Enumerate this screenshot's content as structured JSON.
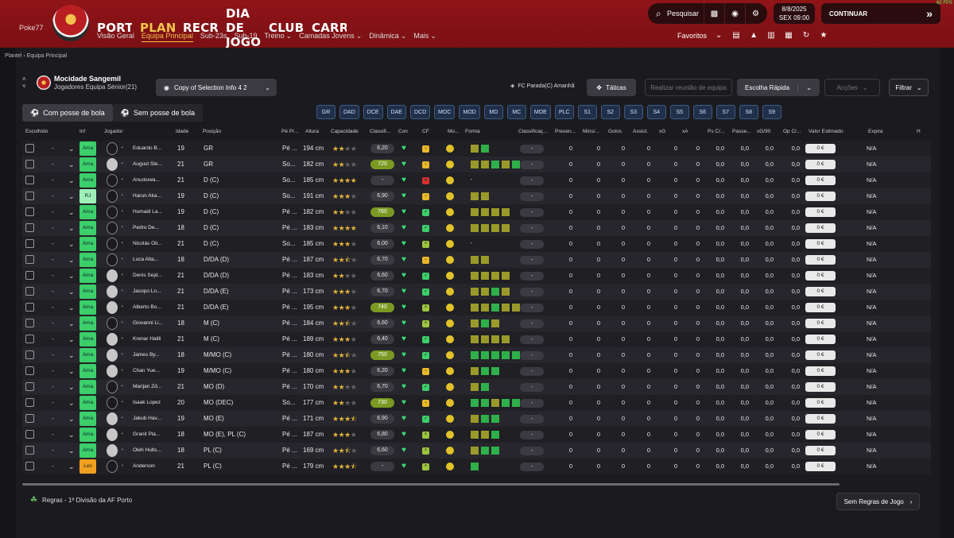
{
  "watermark": {
    "top": "",
    "user": "Poke77"
  },
  "fps": "60 FPS",
  "nav": {
    "main": [
      {
        "label": "PORTAL",
        "active": false
      },
      {
        "label": "PLANTEL",
        "active": true
      },
      {
        "label": "RECRUTAMENTO",
        "active": false
      },
      {
        "label": "DIA DE JOGO",
        "active": false
      },
      {
        "label": "CLUBE",
        "active": false
      },
      {
        "label": "CARREIRA",
        "active": false
      }
    ],
    "sub": [
      "Visão Geral",
      "Equipa Principal",
      "Sub-23s",
      "Sub-19",
      "Treino",
      "Camadas Jovens",
      "Dinâmica",
      "Mais"
    ],
    "sub_active": 1,
    "search_label": "Pesquisar",
    "date": "8/8/2025",
    "time": "SEX   09:00",
    "continue": "CONTINUAR",
    "favorites": "Favoritos"
  },
  "breadcrumb": "Plantel  ›  Equipa Principal",
  "header": {
    "club": "Mocidade Sangemil",
    "squad": "Jogadores Equipa Sénior(21)",
    "selection": "Copy of Selection Info 4 2",
    "next_match": "FC Parada(C) Amanhã",
    "tactics": "Táticas",
    "meeting": "Realizar reunião de equipa",
    "quick_pick": "Escolha Rápida",
    "actions": "Acções",
    "filter": "Filtrar"
  },
  "possession": {
    "with": "Com posse de bola",
    "without": "Sem posse de bola"
  },
  "position_filters": [
    "GR",
    "DAD",
    "DCE",
    "DAE",
    "DCD",
    "MOC",
    "MOD",
    "MD",
    "MC",
    "MOE",
    "PLC",
    "S1",
    "S2",
    "S3",
    "S4",
    "S5",
    "S6",
    "S7",
    "S8",
    "S9"
  ],
  "columns": [
    "Escolhido",
    "Inf",
    "Jogador",
    "Idade",
    "Posição",
    "Pé Pr...",
    "Altura",
    "Capacidade",
    "Classifi...",
    "Con",
    "CF",
    "Mo...",
    "Forma",
    "Classificaç...",
    "Presen...",
    "Mins/...",
    "Golos",
    "Assist.",
    "xG",
    "xA",
    "Ps C/...",
    "Passe...",
    "xG/90",
    "Op C/...",
    "Valor Estimado",
    "Expira",
    "H"
  ],
  "players": [
    {
      "name": "Eduardo B...",
      "inf": "Ama",
      "age": "19",
      "pos": "GR",
      "foot": "Pé ...",
      "height": "194 cm",
      "stars": 2,
      "half": false,
      "rating": "6,20",
      "hot": false,
      "cf": "y",
      "photo": false,
      "form": [
        "#9a9a2a",
        "#2fb04a"
      ]
    },
    {
      "name": "August Sle...",
      "inf": "Ama",
      "age": "21",
      "pos": "GR",
      "foot": "So...",
      "height": "182 cm",
      "stars": 2,
      "half": false,
      "rating": "720",
      "hot": true,
      "cf": "y",
      "photo": true,
      "form": [
        "#9a9a2a",
        "#9a9a2a",
        "#2fb04a",
        "#9a9a2a",
        "#2fb04a"
      ]
    },
    {
      "name": "Anuoluwa...",
      "inf": "Ama",
      "age": "21",
      "pos": "D (C)",
      "foot": "So...",
      "height": "185 cm",
      "stars": 4,
      "half": false,
      "rating": "-",
      "hot": false,
      "cf": "r",
      "photo": false,
      "form": []
    },
    {
      "name": "Harun Aka...",
      "inf": "RJ",
      "age": "19",
      "pos": "D (C)",
      "foot": "So...",
      "height": "191 cm",
      "stars": 3,
      "half": false,
      "rating": "6,90",
      "hot": false,
      "cf": "y",
      "photo": false,
      "form": [
        "#9a9a2a",
        "#9a9a2a"
      ]
    },
    {
      "name": "Humaid La...",
      "inf": "Ama",
      "age": "19",
      "pos": "D (C)",
      "foot": "Pé ...",
      "height": "182 cm",
      "stars": 2,
      "half": false,
      "rating": "760",
      "hot": true,
      "cf": "gr",
      "photo": false,
      "form": [
        "#9a9a2a",
        "#9a9a2a",
        "#9a9a2a",
        "#9a9a2a"
      ]
    },
    {
      "name": "Pedro De...",
      "inf": "Ama",
      "age": "18",
      "pos": "D (C)",
      "foot": "Pé ...",
      "height": "183 cm",
      "stars": 4,
      "half": false,
      "rating": "6,10",
      "hot": false,
      "cf": "gr",
      "photo": false,
      "form": [
        "#9a9a2a",
        "#9a9a2a",
        "#9a9a2a",
        "#9a9a2a"
      ]
    },
    {
      "name": "Nicolás Oli...",
      "inf": "Ama",
      "age": "21",
      "pos": "D (C)",
      "foot": "So...",
      "height": "185 cm",
      "stars": 3,
      "half": false,
      "rating": "6,00",
      "hot": false,
      "cf": "gy",
      "photo": false,
      "form": []
    },
    {
      "name": "Luca Alta...",
      "inf": "Ama",
      "age": "18",
      "pos": "D/DA (D)",
      "foot": "Pé ...",
      "height": "187 cm",
      "stars": 2,
      "half": true,
      "rating": "6,70",
      "hot": false,
      "cf": "y",
      "photo": false,
      "form": [
        "#9a9a2a",
        "#9a9a2a"
      ]
    },
    {
      "name": "Denis Sejd...",
      "inf": "Ama",
      "age": "21",
      "pos": "D/DA (D)",
      "foot": "Pé ...",
      "height": "183 cm",
      "stars": 2,
      "half": false,
      "rating": "6,60",
      "hot": false,
      "cf": "gr",
      "photo": true,
      "form": [
        "#9a9a2a",
        "#9a9a2a",
        "#9a9a2a",
        "#9a9a2a"
      ]
    },
    {
      "name": "Jacopo Lo...",
      "inf": "Ama",
      "age": "21",
      "pos": "D/DA (E)",
      "foot": "Pé ...",
      "height": "173 cm",
      "stars": 3,
      "half": false,
      "rating": "6,70",
      "hot": false,
      "cf": "gr",
      "photo": true,
      "form": [
        "#9a9a2a",
        "#9a9a2a",
        "#2fb04a",
        "#9a9a2a"
      ]
    },
    {
      "name": "Alberto Bo...",
      "inf": "Ama",
      "age": "21",
      "pos": "D/DA (E)",
      "foot": "Pé ...",
      "height": "195 cm",
      "stars": 3,
      "half": false,
      "rating": "740",
      "hot": true,
      "cf": "gy",
      "photo": true,
      "form": [
        "#9a9a2a",
        "#9a9a2a",
        "#2fb04a",
        "#9a9a2a",
        "#9a9a2a"
      ]
    },
    {
      "name": "Giovanni Li...",
      "inf": "Ama",
      "age": "18",
      "pos": "M (C)",
      "foot": "Pé ...",
      "height": "184 cm",
      "stars": 2,
      "half": true,
      "rating": "6,60",
      "hot": false,
      "cf": "gy",
      "photo": false,
      "form": [
        "#9a9a2a",
        "#2fb04a",
        "#9a9a2a"
      ]
    },
    {
      "name": "Krenar Halili",
      "inf": "Ama",
      "age": "21",
      "pos": "M (C)",
      "foot": "Pé ...",
      "height": "189 cm",
      "stars": 3,
      "half": false,
      "rating": "6,40",
      "hot": false,
      "cf": "gr",
      "photo": true,
      "form": [
        "#9a9a2a",
        "#9a9a2a",
        "#9a9a2a",
        "#9a9a2a"
      ]
    },
    {
      "name": "James By...",
      "inf": "Ama",
      "age": "18",
      "pos": "M/MO (C)",
      "foot": "Pé ...",
      "height": "180 cm",
      "stars": 2,
      "half": true,
      "rating": "750",
      "hot": true,
      "cf": "gr",
      "photo": true,
      "form": [
        "#2fb04a",
        "#2fb04a",
        "#2fb04a",
        "#2fb04a",
        "#2fb04a"
      ]
    },
    {
      "name": "Chan Yue...",
      "inf": "Ama",
      "age": "19",
      "pos": "M/MO (C)",
      "foot": "Pé ...",
      "height": "180 cm",
      "stars": 3,
      "half": false,
      "rating": "6,20",
      "hot": false,
      "cf": "y",
      "photo": true,
      "form": [
        "#9a9a2a",
        "#2fb04a",
        "#2fb04a"
      ]
    },
    {
      "name": "Marijan Zd...",
      "inf": "Ama",
      "age": "21",
      "pos": "MO (D)",
      "foot": "Pé ...",
      "height": "170 cm",
      "stars": 2,
      "half": false,
      "rating": "6,70",
      "hot": false,
      "cf": "gr",
      "photo": false,
      "form": [
        "#9a9a2a",
        "#2fb04a"
      ]
    },
    {
      "name": "Isaak Lopez",
      "inf": "Ama",
      "age": "20",
      "pos": "MO (DEC)",
      "foot": "So...",
      "height": "177 cm",
      "stars": 2,
      "half": false,
      "rating": "730",
      "hot": true,
      "cf": "y",
      "photo": false,
      "form": [
        "#2fb04a",
        "#2fb04a",
        "#9a9a2a",
        "#2fb04a",
        "#2fb04a"
      ]
    },
    {
      "name": "Jakub Hav...",
      "inf": "Ama",
      "age": "19",
      "pos": "MO (E)",
      "foot": "Pé ...",
      "height": "171 cm",
      "stars": 3,
      "half": true,
      "rating": "6,90",
      "hot": false,
      "cf": "gr",
      "photo": true,
      "form": [
        "#9a9a2a",
        "#2fb04a",
        "#2fb04a"
      ]
    },
    {
      "name": "Granit Pla...",
      "inf": "Ama",
      "age": "18",
      "pos": "MO (E), PL (C)",
      "foot": "Pé ...",
      "height": "187 cm",
      "stars": 3,
      "half": false,
      "rating": "6,80",
      "hot": false,
      "cf": "gy",
      "photo": true,
      "form": [
        "#9a9a2a",
        "#9a9a2a",
        "#2fb04a"
      ]
    },
    {
      "name": "Oleh Hults...",
      "inf": "Ama",
      "age": "18",
      "pos": "PL (C)",
      "foot": "Pé ...",
      "height": "169 cm",
      "stars": 2,
      "half": true,
      "rating": "6,60",
      "hot": false,
      "cf": "gy",
      "photo": true,
      "form": [
        "#9a9a2a",
        "#2fb04a",
        "#2fb04a"
      ]
    },
    {
      "name": "Anderson",
      "inf": "Les",
      "age": "21",
      "pos": "PL (C)",
      "foot": "Pé ...",
      "height": "179 cm",
      "stars": 3,
      "half": true,
      "rating": "-",
      "hot": false,
      "cf": "gy",
      "photo": false,
      "form": [
        "#2fb04a"
      ]
    }
  ],
  "stats_defaults": {
    "zero": "0",
    "decimal": "0,0",
    "value": "0 €",
    "expires": "N/A",
    "chosen": "-",
    "class2": "-"
  },
  "footer": {
    "rules": "Regras - 1ª Divisão da AF Porto",
    "no_rules": "Sem Regras de Jogo"
  }
}
